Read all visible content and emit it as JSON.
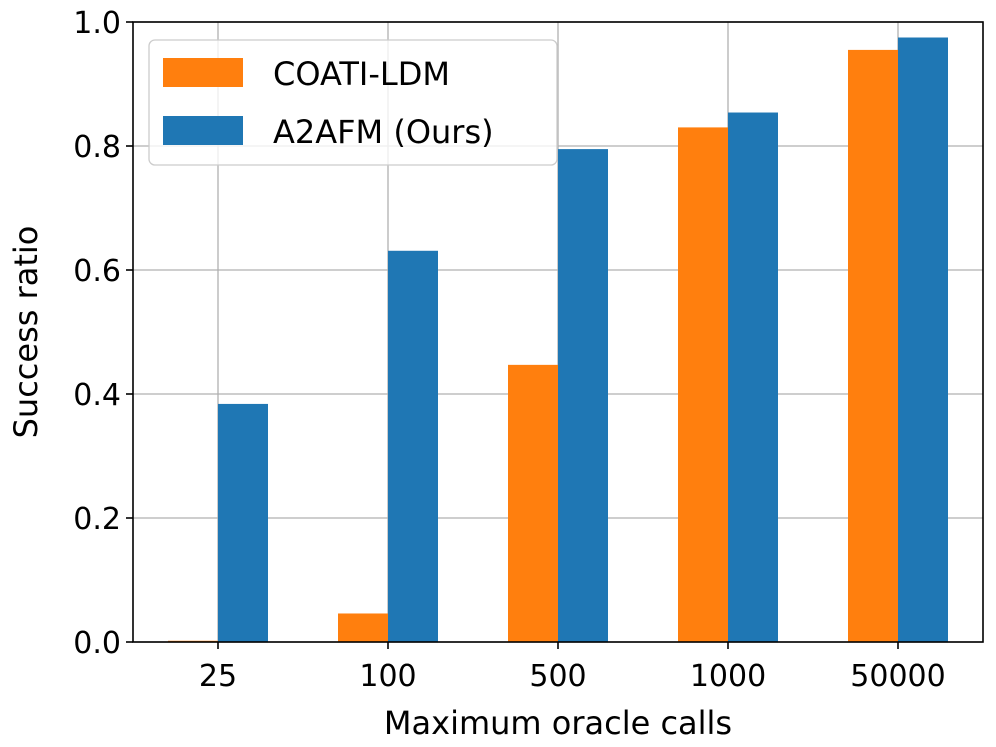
{
  "chart_data": {
    "type": "bar",
    "title": "",
    "xlabel": "Maximum oracle calls",
    "ylabel": "Success ratio",
    "categories": [
      "25",
      "100",
      "500",
      "1000",
      "50000"
    ],
    "ylim": [
      0,
      1.0
    ],
    "yticks": [
      0.0,
      0.2,
      0.4,
      0.6,
      0.8,
      1.0
    ],
    "ytick_labels": [
      "0.0",
      "0.2",
      "0.4",
      "0.6",
      "0.8",
      "1.0"
    ],
    "grid": true,
    "legend_position": "top-left",
    "series": [
      {
        "name": "COATI-LDM",
        "color": "#ff7f0e",
        "values": [
          0.002,
          0.046,
          0.447,
          0.83,
          0.955
        ]
      },
      {
        "name": "A2AFM (Ours)",
        "color": "#1f77b4",
        "values": [
          0.384,
          0.631,
          0.795,
          0.854,
          0.975
        ]
      }
    ]
  }
}
